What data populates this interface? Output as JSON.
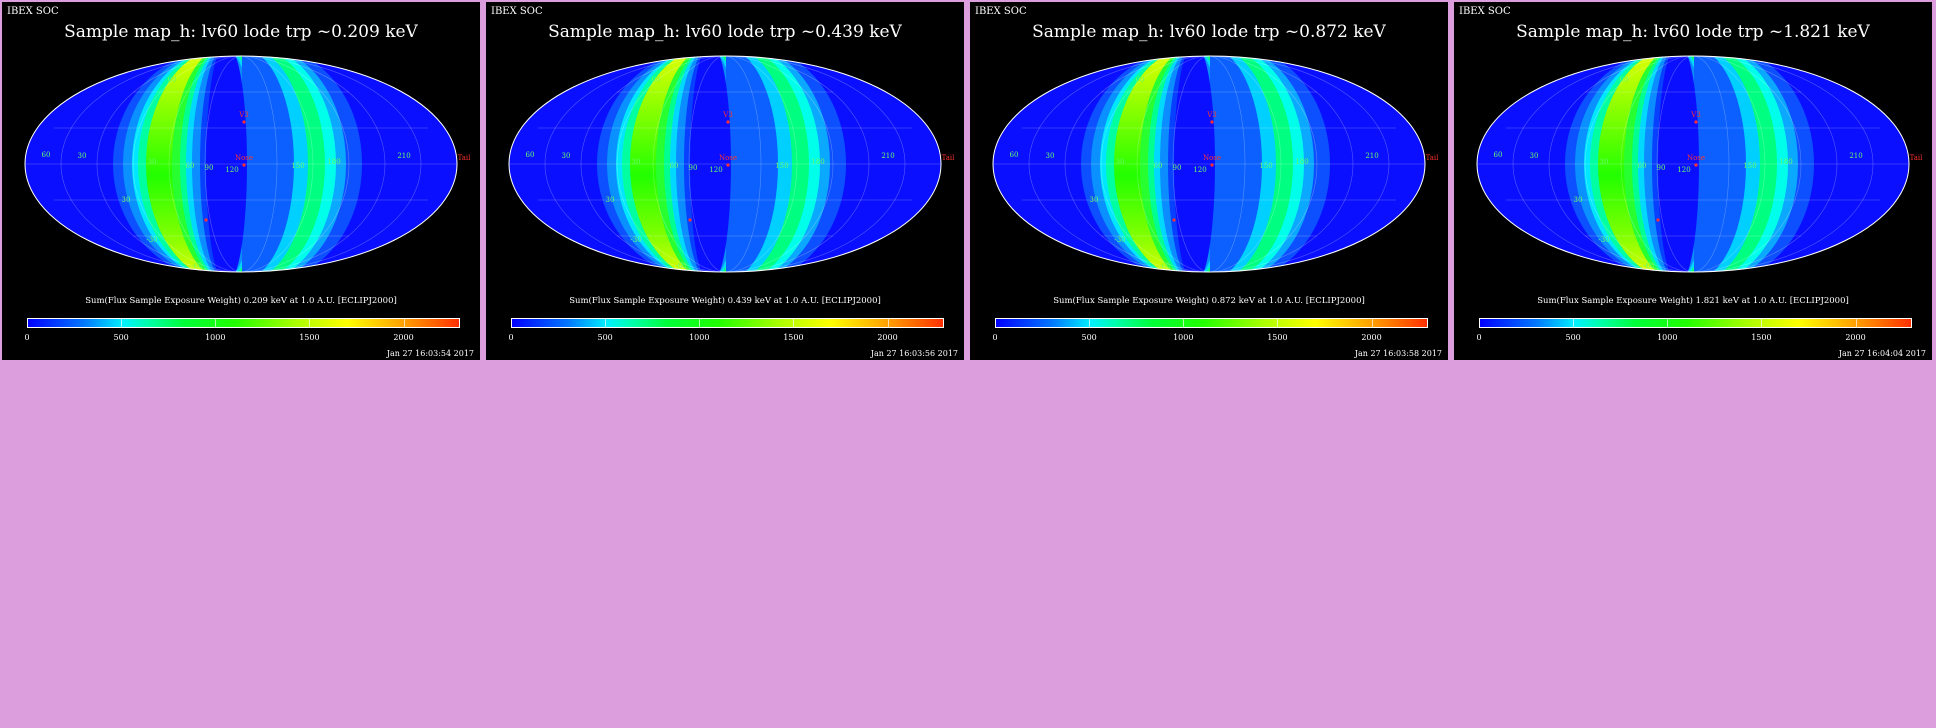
{
  "colors": {
    "page_background": "#dc9edc",
    "panel_background": "#000000",
    "map_base": "#0a10ff",
    "marker_red": "#ff3030"
  },
  "panels": [
    {
      "soc_label": "IBEX SOC",
      "title": "Sample map_h: lv60 lode trp ~0.209 keV",
      "colorbar_title": "Sum(Flux Sample Exposure Weight)  0.209 keV at 1.0 A.U. [ECLIPJ2000]",
      "timestamp": "Jan 27 16:03:54 2017"
    },
    {
      "soc_label": "IBEX SOC",
      "title": "Sample map_h: lv60 lode trp ~0.439 keV",
      "colorbar_title": "Sum(Flux Sample Exposure Weight)  0.439 keV at 1.0 A.U. [ECLIPJ2000]",
      "timestamp": "Jan 27 16:03:56 2017"
    },
    {
      "soc_label": "IBEX SOC",
      "title": "Sample map_h: lv60 lode trp ~0.872 keV",
      "colorbar_title": "Sum(Flux Sample Exposure Weight)  0.872 keV at 1.0 A.U. [ECLIPJ2000]",
      "timestamp": "Jan 27 16:03:58 2017"
    },
    {
      "soc_label": "IBEX SOC",
      "title": "Sample map_h: lv60 lode trp ~1.821 keV",
      "colorbar_title": "Sum(Flux Sample Exposure Weight)  1.821 keV at 1.0 A.U. [ECLIPJ2000]",
      "timestamp": "Jan 27 16:04:04 2017"
    }
  ],
  "colorbar_ticks": [
    "0",
    "500",
    "1000",
    "1500",
    "2000"
  ],
  "colorbar_tick_values": [
    0,
    500,
    1000,
    1500,
    2000
  ],
  "colorbar_range": [
    0,
    2300
  ],
  "map_labels": {
    "lon_labels": [
      "60",
      "30",
      "30",
      "60",
      "90",
      "120",
      "150",
      "180",
      "210"
    ],
    "inner_labels": [
      "-30",
      "-60",
      "-90",
      "120",
      "-150"
    ],
    "v3": "V3",
    "nose": "Nose",
    "tail": "Tail",
    "lat_labels": [
      "60",
      "30",
      "-30",
      "-60"
    ]
  }
}
